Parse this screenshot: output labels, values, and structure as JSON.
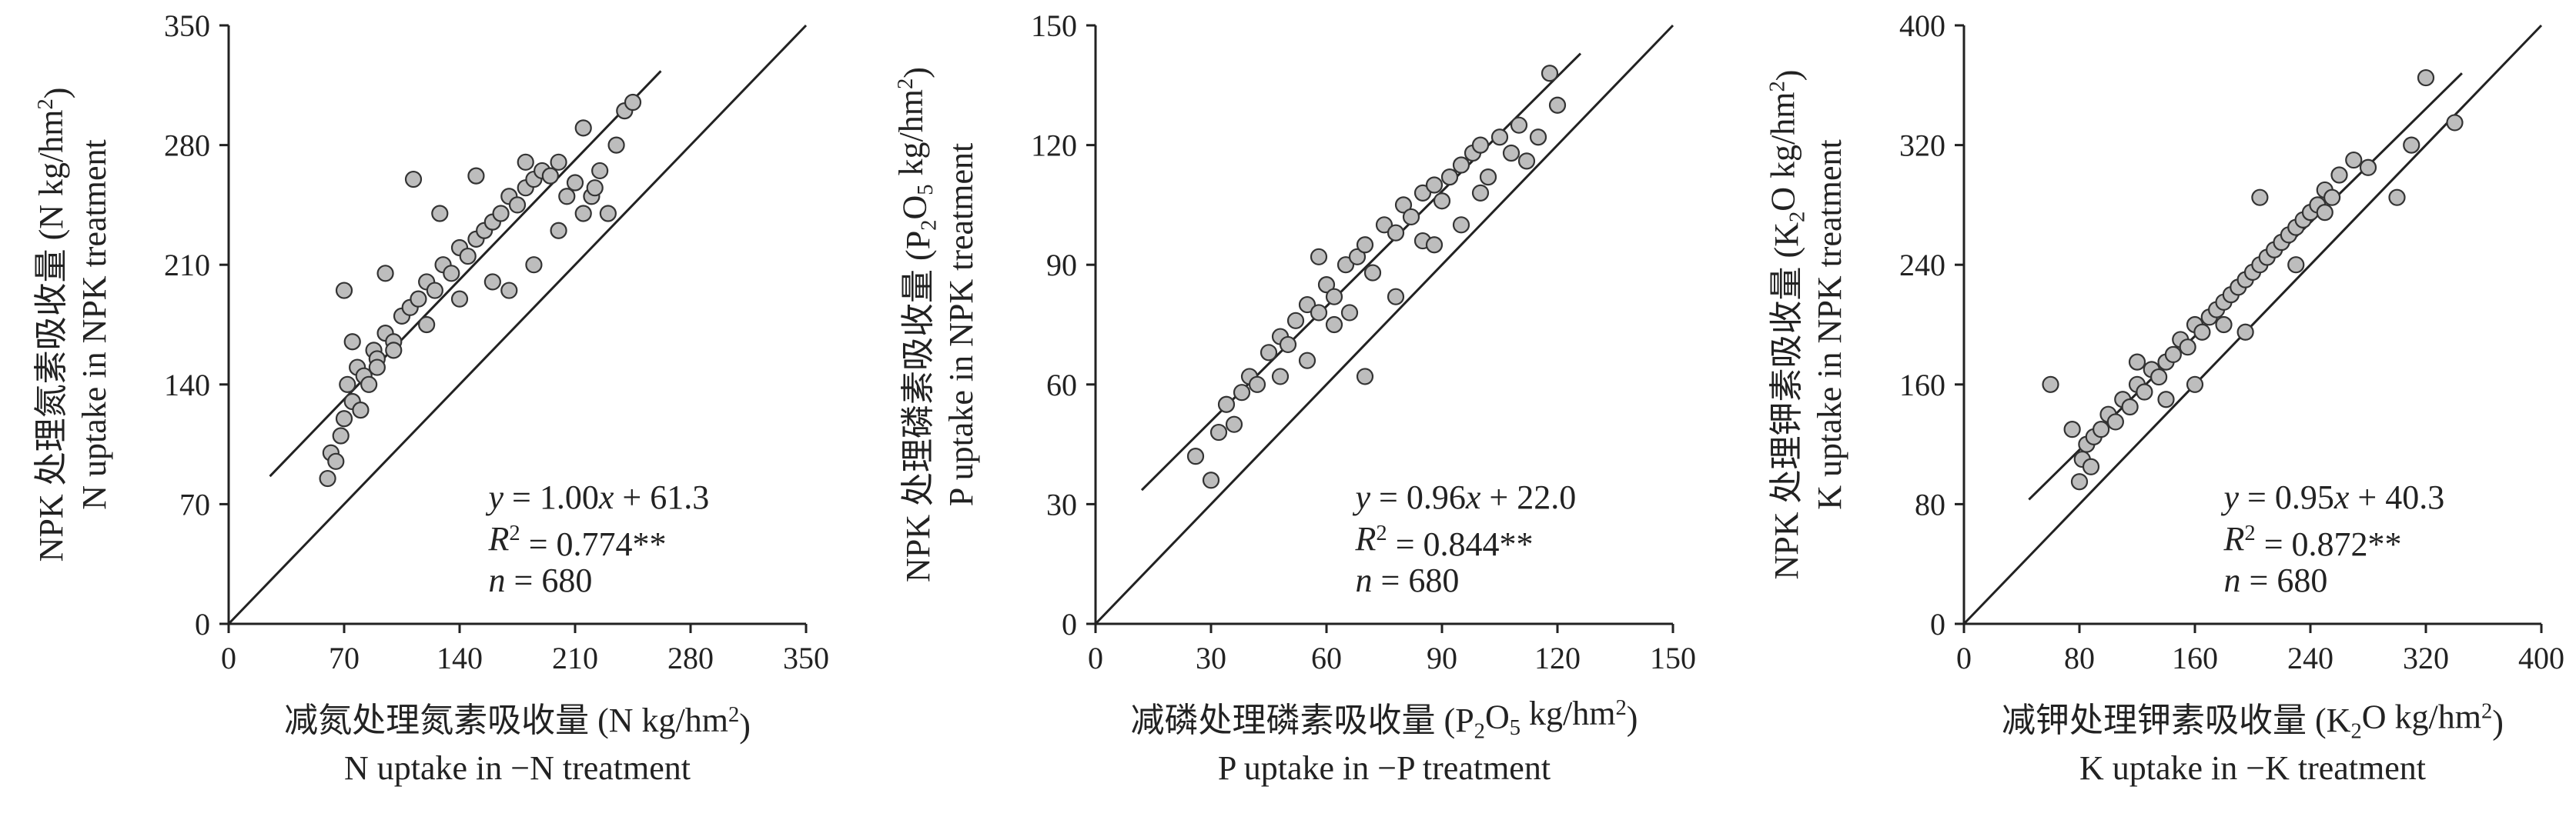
{
  "chart_data": [
    {
      "type": "scatter",
      "id": "N",
      "xlabel": [
        "减氮处理氮素吸收量 (N kg/hm²)",
        "N uptake in −N treatment"
      ],
      "ylabel": [
        "NPK 处理氮素吸收量 (N kg/hm²)",
        "N uptake in NPK treatment"
      ],
      "xlim": [
        0,
        350
      ],
      "ylim": [
        0,
        350
      ],
      "xticks": [
        "0",
        "70",
        "140",
        "210",
        "280",
        "350"
      ],
      "yticks": [
        "0",
        "70",
        "140",
        "210",
        "280",
        "350"
      ],
      "regression": {
        "slope": 1.0,
        "intercept": 61.3,
        "x_range": [
          25,
          262
        ]
      },
      "reference_line": "1:1",
      "annotations": [
        "y = 1.00x + 61.3",
        "R² = 0.774**",
        "n = 680"
      ],
      "n": 680,
      "x": [
        60,
        62,
        65,
        68,
        70,
        72,
        75,
        78,
        80,
        82,
        85,
        88,
        90,
        95,
        100,
        105,
        110,
        115,
        120,
        125,
        130,
        135,
        140,
        145,
        150,
        155,
        160,
        165,
        170,
        175,
        180,
        185,
        190,
        195,
        200,
        210,
        215,
        220,
        225,
        230,
        235,
        240,
        245,
        70,
        95,
        112,
        150,
        128,
        140,
        170,
        185,
        200,
        180,
        160,
        120,
        100,
        90,
        75,
        205,
        215,
        222
      ],
      "y": [
        85,
        100,
        95,
        110,
        120,
        140,
        130,
        150,
        125,
        145,
        140,
        160,
        155,
        170,
        165,
        180,
        185,
        190,
        200,
        195,
        210,
        205,
        220,
        215,
        225,
        230,
        235,
        240,
        250,
        245,
        255,
        260,
        265,
        262,
        270,
        258,
        290,
        250,
        265,
        240,
        280,
        300,
        305,
        195,
        205,
        260,
        262,
        240,
        190,
        195,
        210,
        230,
        270,
        200,
        175,
        160,
        150,
        165,
        250,
        240,
        255
      ]
    },
    {
      "type": "scatter",
      "id": "P",
      "xlabel": [
        "减磷处理磷素吸收量 (P₂O₅ kg/hm²)",
        "P uptake in −P treatment"
      ],
      "ylabel": [
        "NPK 处理磷素吸收量 (P₂O₅ kg/hm²)",
        "P uptake in NPK treatment"
      ],
      "xlim": [
        0,
        150
      ],
      "ylim": [
        0,
        150
      ],
      "xticks": [
        "0",
        "30",
        "60",
        "90",
        "120",
        "150"
      ],
      "yticks": [
        "0",
        "30",
        "60",
        "90",
        "120",
        "150"
      ],
      "regression": {
        "slope": 0.96,
        "intercept": 22.0,
        "x_range": [
          12,
          126
        ]
      },
      "reference_line": "1:1",
      "annotations": [
        "y = 0.96x + 22.0",
        "R² = 0.844**",
        "n = 680"
      ],
      "n": 680,
      "x": [
        26,
        30,
        32,
        34,
        36,
        38,
        40,
        42,
        45,
        48,
        50,
        52,
        55,
        58,
        60,
        62,
        65,
        68,
        70,
        72,
        75,
        78,
        80,
        82,
        85,
        88,
        90,
        92,
        95,
        98,
        100,
        102,
        105,
        108,
        110,
        112,
        115,
        118,
        120,
        70,
        62,
        95,
        85,
        58,
        48,
        78,
        100,
        55,
        66,
        88
      ],
      "y": [
        42,
        36,
        48,
        55,
        50,
        58,
        62,
        60,
        68,
        72,
        70,
        76,
        80,
        78,
        85,
        82,
        90,
        92,
        95,
        88,
        100,
        98,
        105,
        102,
        108,
        110,
        106,
        112,
        115,
        118,
        120,
        112,
        122,
        118,
        125,
        116,
        122,
        138,
        130,
        62,
        75,
        100,
        96,
        92,
        62,
        82,
        108,
        66,
        78,
        95
      ]
    },
    {
      "type": "scatter",
      "id": "K",
      "xlabel": [
        "减钾处理钾素吸收量 (K₂O kg/hm²)",
        "K uptake in −K treatment"
      ],
      "ylabel": [
        "NPK 处理钾素吸收量 (K₂O kg/hm²)",
        "K uptake in NPK treatment"
      ],
      "xlim": [
        0,
        400
      ],
      "ylim": [
        0,
        400
      ],
      "xticks": [
        "0",
        "80",
        "160",
        "240",
        "320",
        "400"
      ],
      "yticks": [
        "0",
        "80",
        "160",
        "240",
        "320",
        "400"
      ],
      "regression": {
        "slope": 0.95,
        "intercept": 40.3,
        "x_range": [
          45,
          345
        ]
      },
      "reference_line": "1:1",
      "annotations": [
        "y = 0.95x + 40.3",
        "R² = 0.872**",
        "n = 680"
      ],
      "n": 680,
      "x": [
        60,
        75,
        80,
        82,
        85,
        88,
        90,
        95,
        100,
        105,
        110,
        115,
        120,
        125,
        130,
        135,
        140,
        145,
        150,
        155,
        160,
        165,
        170,
        175,
        180,
        185,
        190,
        195,
        200,
        205,
        210,
        215,
        220,
        225,
        230,
        235,
        240,
        245,
        250,
        255,
        260,
        270,
        280,
        300,
        310,
        320,
        340,
        205,
        160,
        140,
        250,
        180,
        230,
        120,
        195
      ],
      "y": [
        160,
        130,
        95,
        110,
        120,
        105,
        125,
        130,
        140,
        135,
        150,
        145,
        160,
        155,
        170,
        165,
        175,
        180,
        190,
        185,
        200,
        195,
        205,
        210,
        215,
        220,
        225,
        230,
        235,
        240,
        245,
        250,
        255,
        260,
        265,
        270,
        275,
        280,
        290,
        285,
        300,
        310,
        305,
        285,
        320,
        365,
        335,
        285,
        160,
        150,
        275,
        200,
        240,
        175,
        195
      ]
    }
  ]
}
